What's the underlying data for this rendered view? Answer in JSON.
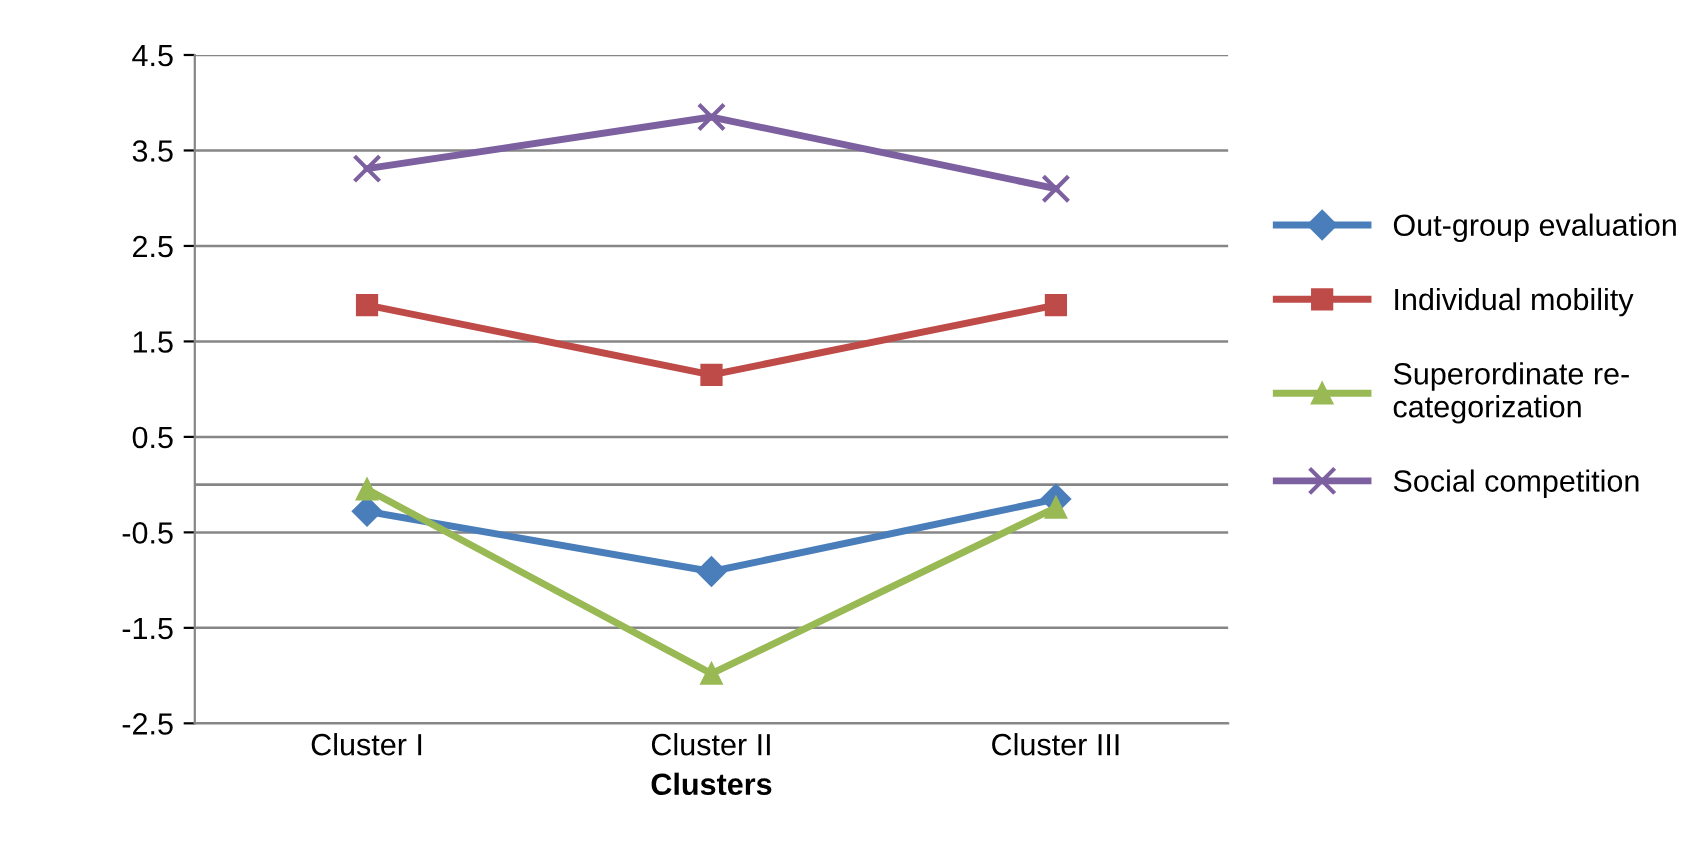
{
  "chart_data": {
    "type": "line",
    "xlabel": "Clusters",
    "categories": [
      "Cluster I",
      "Cluster II",
      "Cluster III"
    ],
    "series": [
      {
        "name": "Out-group evaluation",
        "color": "#4a7ebb",
        "marker": "diamond",
        "values": [
          -0.28,
          -0.91,
          -0.15
        ]
      },
      {
        "name": "Individual mobility",
        "color": "#be4b48",
        "marker": "square",
        "values": [
          1.88,
          1.15,
          1.88
        ]
      },
      {
        "name": "Superordinate re-\ncategorization",
        "color": "#98b954",
        "marker": "triangle",
        "values": [
          -0.05,
          -1.98,
          -0.24
        ]
      },
      {
        "name": "Social competition",
        "color": "#7d60a0",
        "marker": "cross",
        "values": [
          3.31,
          3.85,
          3.1
        ]
      }
    ],
    "ylim": [
      -2.5,
      4.5
    ],
    "yticks": [
      -2.5,
      -1.5,
      -0.5,
      0.5,
      1.5,
      2.5,
      3.5,
      4.5
    ],
    "ref_lines": [
      {
        "axis": "y",
        "value": 0,
        "color": "#868686"
      }
    ],
    "grid": "y",
    "legend": "right",
    "line_style": "solid"
  }
}
